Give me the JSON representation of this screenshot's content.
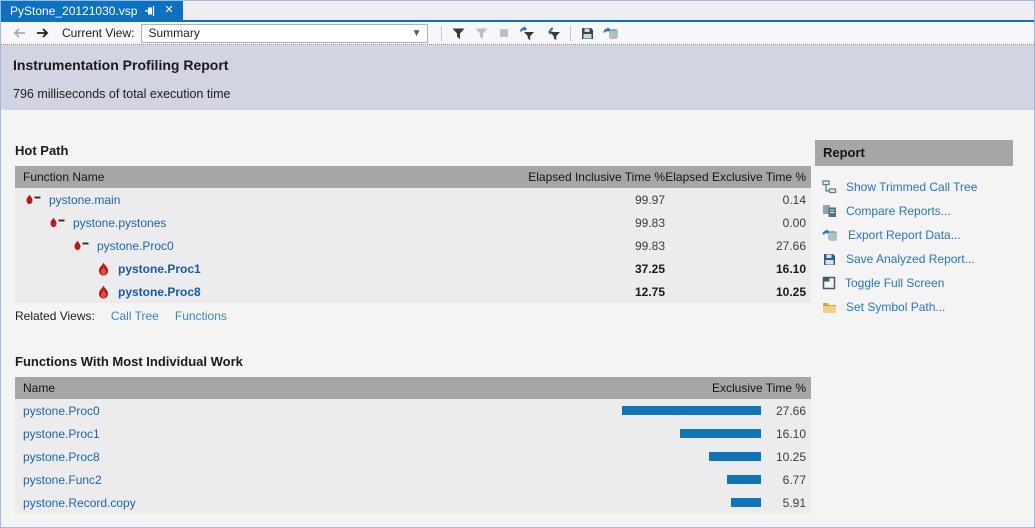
{
  "tab": {
    "title": "PyStone_20121030.vsp",
    "pin_icon": "pin-icon",
    "close_icon": "close-icon"
  },
  "toolbar": {
    "back_icon": "back-arrow-icon",
    "forward_icon": "forward-arrow-icon",
    "current_view_label": "Current View:",
    "view_value": "Summary",
    "caret_icon": "chevron-down-icon",
    "buttons": [
      {
        "sep": true
      },
      {
        "name": "filter-button",
        "icon": "filter-icon",
        "enabled": true
      },
      {
        "name": "filter-pending-button",
        "icon": "filter-disabled-icon",
        "enabled": false
      },
      {
        "name": "stop-profiling-button",
        "icon": "stop-icon",
        "enabled": false
      },
      {
        "name": "apply-filter-button",
        "icon": "filter-apply-icon",
        "enabled": true
      },
      {
        "name": "reapply-filter-button",
        "icon": "filter-reapply-icon",
        "enabled": true
      },
      {
        "sep": true
      },
      {
        "name": "save-report-button",
        "icon": "save-icon",
        "enabled": true
      },
      {
        "name": "export-report-button",
        "icon": "export-icon",
        "enabled": true
      }
    ]
  },
  "report_header": {
    "title": "Instrumentation Profiling Report",
    "subtitle": "796 milliseconds of total execution time"
  },
  "hot_path": {
    "title": "Hot Path",
    "columns": [
      "Function Name",
      "Elapsed Inclusive Time %",
      "Elapsed Exclusive Time %"
    ],
    "rows": [
      {
        "name": "pystone.main",
        "inclusive": "99.97",
        "exclusive": "0.14",
        "indent": 0,
        "bold": false,
        "icon": "flame-path-icon"
      },
      {
        "name": "pystone.pystones",
        "inclusive": "99.83",
        "exclusive": "0.00",
        "indent": 1,
        "bold": false,
        "icon": "flame-path-icon"
      },
      {
        "name": "pystone.Proc0",
        "inclusive": "99.83",
        "exclusive": "27.66",
        "indent": 2,
        "bold": false,
        "icon": "flame-path-icon"
      },
      {
        "name": "pystone.Proc1",
        "inclusive": "37.25",
        "exclusive": "16.10",
        "indent": 3,
        "bold": true,
        "icon": "flame-icon"
      },
      {
        "name": "pystone.Proc8",
        "inclusive": "12.75",
        "exclusive": "10.25",
        "indent": 3,
        "bold": true,
        "icon": "flame-icon"
      }
    ],
    "related_views_label": "Related Views:",
    "related_views": [
      "Call Tree",
      "Functions"
    ]
  },
  "individual_work": {
    "title": "Functions With Most Individual Work",
    "columns": [
      "Name",
      "Exclusive Time %"
    ],
    "rows": [
      {
        "name": "pystone.Proc0",
        "value": 27.66,
        "value_label": "27.66"
      },
      {
        "name": "pystone.Proc1",
        "value": 16.1,
        "value_label": "16.10"
      },
      {
        "name": "pystone.Proc8",
        "value": 10.25,
        "value_label": "10.25"
      },
      {
        "name": "pystone.Func2",
        "value": 6.77,
        "value_label": "6.77"
      },
      {
        "name": "pystone.Record.copy",
        "value": 5.91,
        "value_label": "5.91"
      }
    ],
    "max_bar_value": 27.66
  },
  "report_panel": {
    "title": "Report",
    "items": [
      {
        "label": "Show Trimmed Call Tree",
        "icon": "call-tree-icon"
      },
      {
        "label": "Compare Reports...",
        "icon": "compare-reports-icon"
      },
      {
        "label": "Export Report Data...",
        "icon": "export-data-icon"
      },
      {
        "label": "Save Analyzed Report...",
        "icon": "save-report-icon"
      },
      {
        "label": "Toggle Full Screen",
        "icon": "full-screen-icon"
      },
      {
        "label": "Set Symbol Path...",
        "icon": "symbol-path-icon"
      }
    ]
  },
  "colors": {
    "tab_blue": "#0e70c0",
    "band_lavender": "#d2d3e3",
    "table_header_gray": "#a6a6a6",
    "row_gray": "#ececee",
    "bar_blue": "#1173b8",
    "link_dark": "#1b64ad",
    "link_light": "#3c85c8",
    "flame_red": "#b71c1c"
  }
}
